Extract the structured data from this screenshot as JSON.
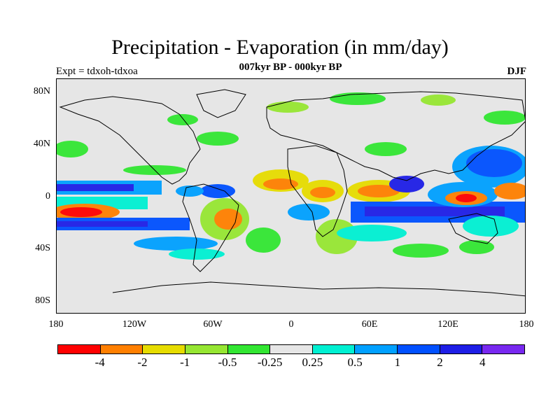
{
  "title": "Precipitation - Evaporation (in mm/day)",
  "subtitle": "007kyr BP - 000kyr BP",
  "experiment": "Expt = tdxoh-tdxoa",
  "season": "DJF",
  "axes": {
    "y_labels": [
      "80N",
      "40N",
      "0",
      "40S",
      "80S"
    ],
    "x_labels": [
      "180",
      "120W",
      "60W",
      "0",
      "60E",
      "120E",
      "180"
    ]
  },
  "colorbar": {
    "colors": [
      "#ff0000",
      "#ff7f00",
      "#e6dc00",
      "#96e632",
      "#32e632",
      "#e6e6e6",
      "#00f0d2",
      "#00a0ff",
      "#0050ff",
      "#1e1ee6",
      "#7828f0"
    ],
    "labels": [
      "-4",
      "-2",
      "-1",
      "-0.5",
      "-0.25",
      "0.25",
      "0.5",
      "1",
      "2",
      "4"
    ]
  }
}
